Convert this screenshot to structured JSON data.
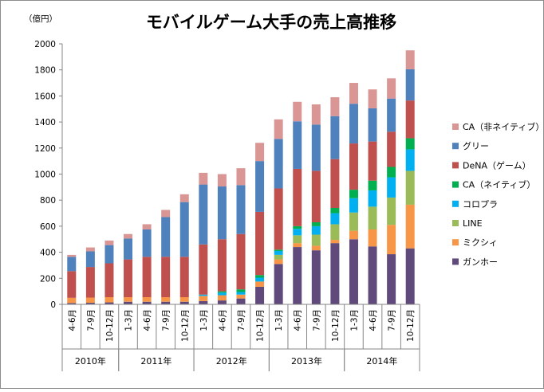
{
  "chart_data": {
    "type": "bar",
    "stacked": true,
    "title": "モバイルゲーム大手の売上高推移",
    "unit_label": "（億円）",
    "ylim": [
      0,
      2000
    ],
    "yticks": [
      0,
      200,
      400,
      600,
      800,
      1000,
      1200,
      1400,
      1600,
      1800,
      2000
    ],
    "grid": false,
    "legend_position": "right",
    "categories": [
      "4-6月",
      "7-9月",
      "10-12月",
      "1-3月",
      "4-6月",
      "7-9月",
      "10-12月",
      "1-3月",
      "4-6月",
      "7-9月",
      "10-12月",
      "1-3月",
      "4-6月",
      "7-9月",
      "10-12月",
      "1-3月",
      "4-6月",
      "7-9月",
      "10-12月"
    ],
    "year_groups": [
      {
        "label": "2010年",
        "start": 0,
        "count": 3
      },
      {
        "label": "2011年",
        "start": 3,
        "count": 4
      },
      {
        "label": "2012年",
        "start": 7,
        "count": 4
      },
      {
        "label": "2013年",
        "start": 11,
        "count": 4
      },
      {
        "label": "2014年",
        "start": 15,
        "count": 4
      }
    ],
    "series": [
      {
        "name": "ガンホー",
        "color": "#604a7b",
        "values": [
          10,
          12,
          15,
          20,
          20,
          20,
          20,
          25,
          30,
          45,
          135,
          310,
          440,
          415,
          470,
          500,
          445,
          385,
          430
        ]
      },
      {
        "name": "ミクシィ",
        "color": "#f79646",
        "values": [
          40,
          40,
          40,
          35,
          35,
          35,
          35,
          40,
          40,
          30,
          40,
          35,
          30,
          35,
          25,
          65,
          130,
          225,
          335
        ]
      },
      {
        "name": "LINE",
        "color": "#9bbb59",
        "values": [
          0,
          0,
          0,
          0,
          0,
          0,
          0,
          0,
          0,
          0,
          0,
          35,
          60,
          85,
          120,
          140,
          175,
          210,
          260
        ]
      },
      {
        "name": "コロプラ",
        "color": "#00b0f0",
        "values": [
          0,
          0,
          0,
          0,
          0,
          0,
          0,
          10,
          20,
          20,
          30,
          30,
          50,
          65,
          85,
          110,
          125,
          155,
          165
        ]
      },
      {
        "name": "CA（ネイティブ）",
        "color": "#00b050",
        "values": [
          0,
          0,
          0,
          0,
          0,
          0,
          0,
          0,
          10,
          20,
          20,
          10,
          20,
          30,
          40,
          65,
          75,
          80,
          85
        ]
      },
      {
        "name": "DeNA（ゲーム）",
        "color": "#c0504d",
        "values": [
          205,
          235,
          260,
          290,
          310,
          310,
          310,
          385,
          400,
          425,
          485,
          470,
          440,
          395,
          375,
          355,
          300,
          270,
          290
        ]
      },
      {
        "name": "グリー",
        "color": "#4f81bd",
        "values": [
          110,
          120,
          140,
          160,
          210,
          305,
          420,
          460,
          405,
          375,
          390,
          380,
          365,
          355,
          330,
          305,
          255,
          255,
          240
        ]
      },
      {
        "name": "CA（非ネイティブ）",
        "color": "#d99694",
        "values": [
          15,
          30,
          35,
          35,
          40,
          55,
          60,
          90,
          95,
          130,
          140,
          150,
          150,
          155,
          145,
          160,
          145,
          155,
          145
        ]
      }
    ]
  }
}
